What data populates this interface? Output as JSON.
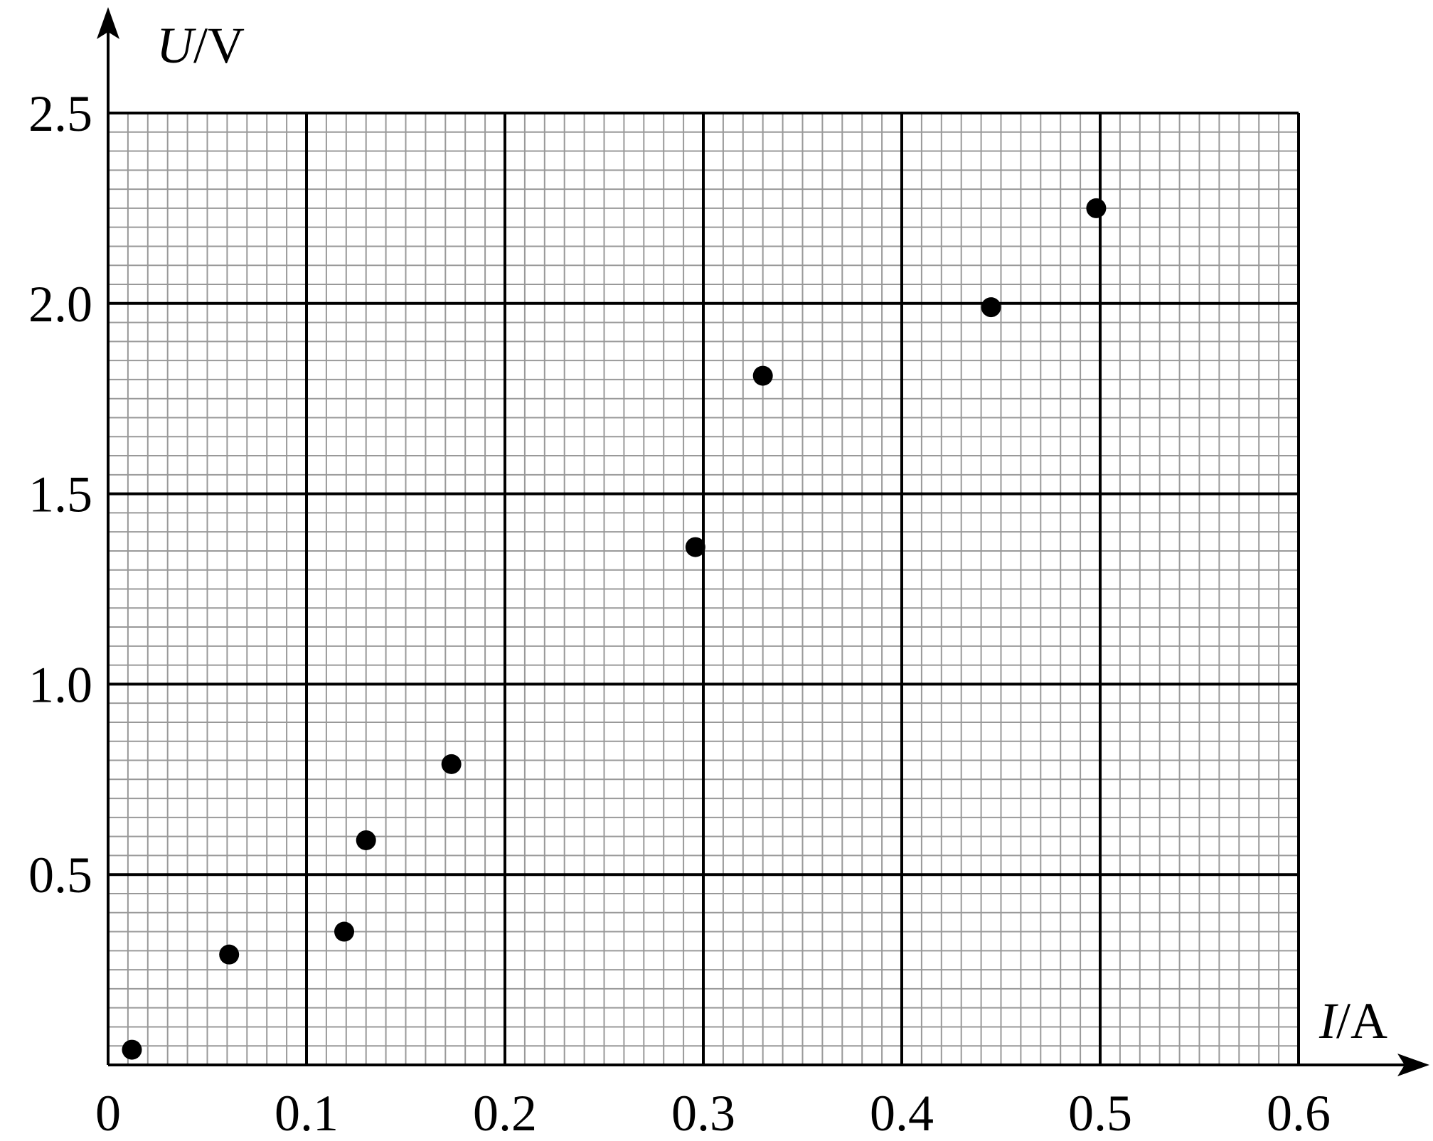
{
  "chart_data": {
    "type": "scatter",
    "x_label_symbol": "I",
    "x_label_unit": "/A",
    "y_label_symbol": "U",
    "y_label_unit": "/V",
    "x": [
      0.012,
      0.061,
      0.119,
      0.13,
      0.173,
      0.296,
      0.33,
      0.445,
      0.498
    ],
    "values": [
      0.04,
      0.29,
      0.35,
      0.59,
      0.79,
      1.36,
      1.81,
      1.99,
      2.25
    ],
    "color": "#000000",
    "xlim": [
      0,
      0.6
    ],
    "xticks": [
      0,
      0.1,
      0.2,
      0.3,
      0.4,
      0.5,
      0.6
    ],
    "ylim": [
      0,
      2.5
    ],
    "yticks": [
      0.5,
      {
        "value": 1,
        "label": "1.0"
      },
      1.5,
      {
        "value": 2,
        "label": "2.0"
      },
      2.5
    ],
    "grid": true,
    "minor_grid": {
      "x": 0.01,
      "y": 0.05
    }
  }
}
